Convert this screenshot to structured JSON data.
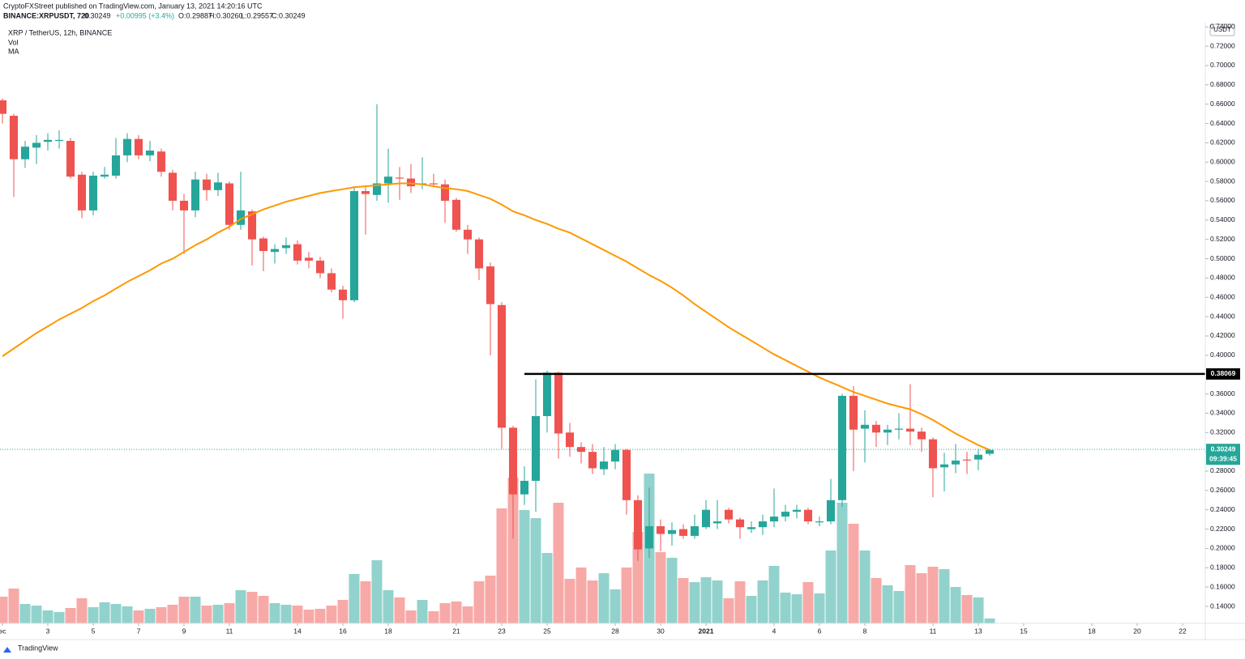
{
  "header": {
    "publisher": "CryptoFXStreet published on TradingView.com, January 13, 2021 14:20:16 UTC",
    "symbol": "BINANCE:XRPUSDT, 720",
    "last": "0.30249",
    "change": "+0.00995 (+3.4%)",
    "open": "O:0.29887",
    "high": "H:0.30260",
    "low": "L:0.29557",
    "close": "C:0.30249"
  },
  "footer": {
    "brand": "TradingView"
  },
  "chart_data": {
    "type": "candlestick",
    "title": "XRP / TetherUS, 12h, BINANCE",
    "up_color": "#26a69a",
    "down_color": "#ef5350",
    "y_unit": "USDT",
    "x": [
      0,
      0.5,
      1,
      1.5,
      2,
      2.5,
      3,
      3.5,
      4,
      4.5,
      5,
      5.5,
      6,
      6.5,
      7,
      7.5,
      8,
      8.5,
      9,
      9.5,
      10,
      10.5,
      11,
      11.5,
      12,
      12.5,
      13,
      13.5,
      14,
      14.5,
      15,
      15.5,
      16,
      16.5,
      17,
      17.5,
      18,
      18.5,
      19,
      19.5,
      20,
      20.5,
      21,
      21.5,
      22,
      22.5,
      23,
      23.5,
      24,
      24.5,
      25,
      25.5,
      26,
      26.5,
      27,
      27.5,
      28,
      28.5,
      29,
      29.5,
      30,
      30.5,
      31,
      31.5,
      32,
      32.5,
      33,
      33.5,
      34,
      34.5,
      35,
      35.5,
      36,
      36.5,
      37,
      37.5,
      38,
      38.5,
      39,
      39.5,
      40,
      40.5,
      41,
      41.5,
      42,
      42.5,
      43,
      43.5
    ],
    "open": [
      0.664,
      0.648,
      0.603,
      0.615,
      0.621,
      0.622,
      0.622,
      0.587,
      0.55,
      0.585,
      0.586,
      0.607,
      0.624,
      0.607,
      0.611,
      0.589,
      0.56,
      0.55,
      0.582,
      0.571,
      0.578,
      0.535,
      0.549,
      0.521,
      0.507,
      0.511,
      0.515,
      0.501,
      0.498,
      0.485,
      0.468,
      0.457,
      0.57,
      0.566,
      0.578,
      0.584,
      0.583,
      0.577,
      0.578,
      0.577,
      0.561,
      0.53,
      0.52,
      0.492,
      0.452,
      0.325,
      0.256,
      0.27,
      0.337,
      0.382,
      0.32,
      0.305,
      0.3,
      0.282,
      0.29,
      0.302,
      0.25,
      0.2,
      0.223,
      0.215,
      0.22,
      0.213,
      0.222,
      0.226,
      0.24,
      0.23,
      0.22,
      0.222,
      0.228,
      0.233,
      0.238,
      0.24,
      0.227,
      0.228,
      0.25,
      0.358,
      0.324,
      0.328,
      0.32,
      0.323,
      0.324,
      0.321,
      0.313,
      0.284,
      0.287,
      0.292,
      0.292,
      0.298
    ],
    "high": [
      0.666,
      0.65,
      0.622,
      0.628,
      0.63,
      0.633,
      0.625,
      0.59,
      0.59,
      0.595,
      0.625,
      0.63,
      0.628,
      0.622,
      0.614,
      0.592,
      0.567,
      0.59,
      0.588,
      0.589,
      0.58,
      0.59,
      0.551,
      0.523,
      0.515,
      0.522,
      0.519,
      0.507,
      0.502,
      0.49,
      0.472,
      0.575,
      0.574,
      0.66,
      0.614,
      0.595,
      0.598,
      0.605,
      0.588,
      0.582,
      0.563,
      0.535,
      0.522,
      0.496,
      0.455,
      0.327,
      0.285,
      0.375,
      0.384,
      0.383,
      0.33,
      0.31,
      0.308,
      0.305,
      0.308,
      0.303,
      0.255,
      0.263,
      0.23,
      0.227,
      0.225,
      0.235,
      0.25,
      0.25,
      0.242,
      0.232,
      0.228,
      0.235,
      0.262,
      0.245,
      0.245,
      0.242,
      0.233,
      0.272,
      0.36,
      0.368,
      0.343,
      0.332,
      0.328,
      0.34,
      0.37,
      0.325,
      0.315,
      0.299,
      0.308,
      0.3,
      0.303,
      0.303
    ],
    "low": [
      0.64,
      0.564,
      0.594,
      0.598,
      0.612,
      0.614,
      0.583,
      0.542,
      0.545,
      0.583,
      0.583,
      0.6,
      0.603,
      0.601,
      0.585,
      0.55,
      0.505,
      0.543,
      0.56,
      0.565,
      0.53,
      0.53,
      0.493,
      0.487,
      0.495,
      0.505,
      0.494,
      0.49,
      0.48,
      0.465,
      0.438,
      0.455,
      0.525,
      0.56,
      0.558,
      0.561,
      0.568,
      0.572,
      0.575,
      0.537,
      0.528,
      0.505,
      0.478,
      0.4,
      0.303,
      0.21,
      0.245,
      0.238,
      0.32,
      0.293,
      0.295,
      0.288,
      0.277,
      0.276,
      0.282,
      0.235,
      0.187,
      0.19,
      0.197,
      0.203,
      0.21,
      0.21,
      0.22,
      0.22,
      0.226,
      0.21,
      0.216,
      0.214,
      0.222,
      0.228,
      0.231,
      0.225,
      0.223,
      0.225,
      0.243,
      0.28,
      0.289,
      0.305,
      0.307,
      0.313,
      0.307,
      0.3,
      0.253,
      0.259,
      0.278,
      0.277,
      0.281,
      0.296
    ],
    "close": [
      0.65,
      0.603,
      0.616,
      0.62,
      0.623,
      0.623,
      0.585,
      0.55,
      0.586,
      0.587,
      0.607,
      0.624,
      0.607,
      0.612,
      0.59,
      0.56,
      0.55,
      0.582,
      0.571,
      0.579,
      0.535,
      0.55,
      0.52,
      0.508,
      0.51,
      0.514,
      0.498,
      0.498,
      0.485,
      0.468,
      0.457,
      0.57,
      0.567,
      0.578,
      0.585,
      0.583,
      0.575,
      0.578,
      0.577,
      0.56,
      0.53,
      0.52,
      0.49,
      0.453,
      0.325,
      0.256,
      0.27,
      0.337,
      0.382,
      0.319,
      0.305,
      0.3,
      0.283,
      0.29,
      0.302,
      0.25,
      0.199,
      0.223,
      0.215,
      0.219,
      0.213,
      0.223,
      0.24,
      0.228,
      0.23,
      0.222,
      0.222,
      0.228,
      0.233,
      0.238,
      0.24,
      0.228,
      0.228,
      0.25,
      0.358,
      0.323,
      0.328,
      0.32,
      0.323,
      0.324,
      0.321,
      0.313,
      0.283,
      0.287,
      0.291,
      0.291,
      0.297,
      0.302
    ],
    "volume": {
      "name": "Vol",
      "values": [
        33,
        43,
        24,
        22,
        16,
        14,
        19,
        31,
        20,
        26,
        24,
        21,
        16,
        18,
        20,
        23,
        33,
        33,
        22,
        23,
        25,
        41,
        39,
        34,
        25,
        23,
        22,
        17,
        18,
        22,
        29,
        61,
        52,
        78,
        41,
        32,
        16,
        29,
        15,
        25,
        27,
        21,
        52,
        59,
        142,
        180,
        140,
        130,
        87,
        149,
        55,
        69,
        53,
        62,
        42,
        69,
        113,
        185,
        88,
        81,
        56,
        51,
        57,
        53,
        31,
        52,
        34,
        53,
        71,
        38,
        36,
        51,
        37,
        90,
        149,
        123,
        90,
        56,
        47,
        40,
        72,
        62,
        70,
        67,
        45,
        35,
        32,
        6
      ]
    },
    "ma": {
      "name": "MA",
      "color": "#ff9800",
      "values": [
        0.399,
        0.407,
        0.415,
        0.423,
        0.43,
        0.437,
        0.443,
        0.449,
        0.456,
        0.462,
        0.469,
        0.476,
        0.482,
        0.488,
        0.495,
        0.5,
        0.507,
        0.514,
        0.52,
        0.527,
        0.533,
        0.541,
        0.546,
        0.551,
        0.555,
        0.559,
        0.562,
        0.565,
        0.568,
        0.57,
        0.572,
        0.574,
        0.575,
        0.576,
        0.577,
        0.578,
        0.578,
        0.577,
        0.575,
        0.573,
        0.572,
        0.57,
        0.566,
        0.562,
        0.556,
        0.549,
        0.545,
        0.54,
        0.536,
        0.531,
        0.527,
        0.521,
        0.515,
        0.509,
        0.503,
        0.497,
        0.49,
        0.483,
        0.477,
        0.47,
        0.462,
        0.453,
        0.445,
        0.437,
        0.429,
        0.422,
        0.415,
        0.408,
        0.401,
        0.395,
        0.389,
        0.383,
        0.377,
        0.372,
        0.367,
        0.362,
        0.358,
        0.354,
        0.35,
        0.347,
        0.344,
        0.339,
        0.333,
        0.326,
        0.319,
        0.313,
        0.307,
        0.302
      ]
    },
    "hline": {
      "value": 0.38069,
      "label": "0.38069",
      "x_start": 23,
      "color": "#000000"
    },
    "price_line": {
      "value": 0.30249,
      "label": "0.30249",
      "countdown": "09:39:45",
      "color": "#26a69a"
    },
    "ylim": [
      0.1224,
      0.7444
    ],
    "yticks": [
      {
        "value": 0.14,
        "label": "0.14000"
      },
      {
        "value": 0.16,
        "label": "0.16000"
      },
      {
        "value": 0.18,
        "label": "0.18000"
      },
      {
        "value": 0.2,
        "label": "0.20000"
      },
      {
        "value": 0.22,
        "label": "0.22000"
      },
      {
        "value": 0.24,
        "label": "0.24000"
      },
      {
        "value": 0.26,
        "label": "0.26000"
      },
      {
        "value": 0.28,
        "label": "0.28000"
      },
      {
        "value": 0.3,
        "label": "0.30000"
      },
      {
        "value": 0.32,
        "label": "0.32000"
      },
      {
        "value": 0.34,
        "label": "0.34000"
      },
      {
        "value": 0.36,
        "label": "0.36000"
      },
      {
        "value": 0.4,
        "label": "0.40000"
      },
      {
        "value": 0.42,
        "label": "0.42000"
      },
      {
        "value": 0.44,
        "label": "0.44000"
      },
      {
        "value": 0.46,
        "label": "0.46000"
      },
      {
        "value": 0.48,
        "label": "0.48000"
      },
      {
        "value": 0.5,
        "label": "0.50000"
      },
      {
        "value": 0.52,
        "label": "0.52000"
      },
      {
        "value": 0.54,
        "label": "0.54000"
      },
      {
        "value": 0.56,
        "label": "0.56000"
      },
      {
        "value": 0.58,
        "label": "0.58000"
      },
      {
        "value": 0.6,
        "label": "0.60000"
      },
      {
        "value": 0.62,
        "label": "0.62000"
      },
      {
        "value": 0.64,
        "label": "0.64000"
      },
      {
        "value": 0.66,
        "label": "0.66000"
      },
      {
        "value": 0.68,
        "label": "0.68000"
      },
      {
        "value": 0.7,
        "label": "0.70000"
      },
      {
        "value": 0.72,
        "label": "0.72000"
      },
      {
        "value": 0.74,
        "label": "0.74000"
      }
    ],
    "xlim": [
      -0.107,
      53
    ],
    "xticks": [
      {
        "value": 0,
        "label": "ec"
      },
      {
        "value": 2,
        "label": "3"
      },
      {
        "value": 4,
        "label": "5"
      },
      {
        "value": 6,
        "label": "7"
      },
      {
        "value": 8,
        "label": "9"
      },
      {
        "value": 10,
        "label": "11"
      },
      {
        "value": 13,
        "label": "14"
      },
      {
        "value": 15,
        "label": "16"
      },
      {
        "value": 17,
        "label": "18"
      },
      {
        "value": 20,
        "label": "21"
      },
      {
        "value": 22,
        "label": "23"
      },
      {
        "value": 24,
        "label": "25"
      },
      {
        "value": 27,
        "label": "28"
      },
      {
        "value": 29,
        "label": "30"
      },
      {
        "value": 31,
        "label": "2021"
      },
      {
        "value": 34,
        "label": "4"
      },
      {
        "value": 36,
        "label": "6"
      },
      {
        "value": 38,
        "label": "8"
      },
      {
        "value": 41,
        "label": "11"
      },
      {
        "value": 43,
        "label": "13"
      },
      {
        "value": 45,
        "label": "15"
      },
      {
        "value": 48,
        "label": "18"
      },
      {
        "value": 50,
        "label": "20"
      },
      {
        "value": 52,
        "label": "22"
      }
    ]
  }
}
